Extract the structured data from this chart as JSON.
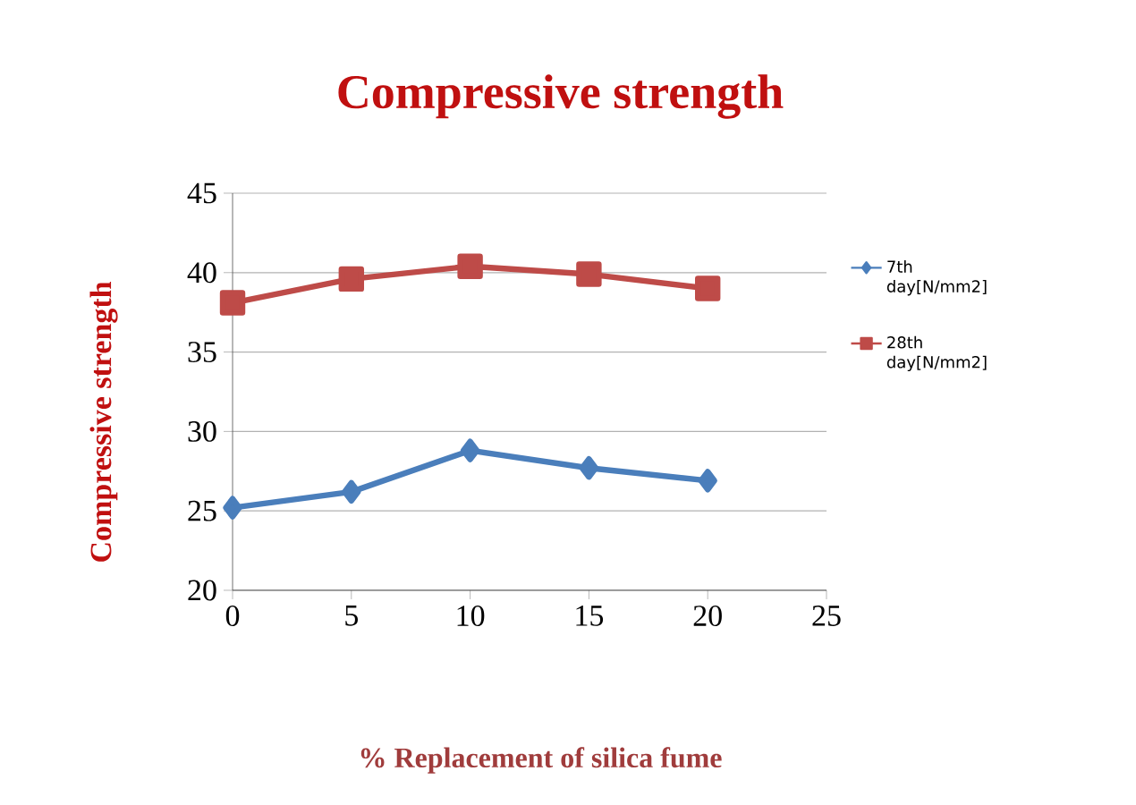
{
  "chart_data": {
    "type": "line",
    "title": "Compressive strength",
    "xlabel": "% Replacement of silica fume",
    "ylabel": "Compressive strength",
    "x": [
      0,
      5,
      10,
      15,
      20
    ],
    "series": [
      {
        "name": "7th day[N/mm2]",
        "color": "#4a7ebb",
        "marker": "diamond",
        "values": [
          25.2,
          26.2,
          28.8,
          27.7,
          26.9
        ]
      },
      {
        "name": "28th day[N/mm2]",
        "color": "#be4b48",
        "marker": "square",
        "values": [
          38.1,
          39.6,
          40.4,
          39.9,
          39.0
        ]
      }
    ],
    "xlim": [
      0,
      25
    ],
    "xticks": [
      0,
      5,
      10,
      15,
      20,
      25
    ],
    "ylim": [
      20,
      45
    ],
    "yticks": [
      20,
      25,
      30,
      35,
      40,
      45
    ],
    "grid": "y",
    "legend": "right",
    "line_style": "solid"
  }
}
